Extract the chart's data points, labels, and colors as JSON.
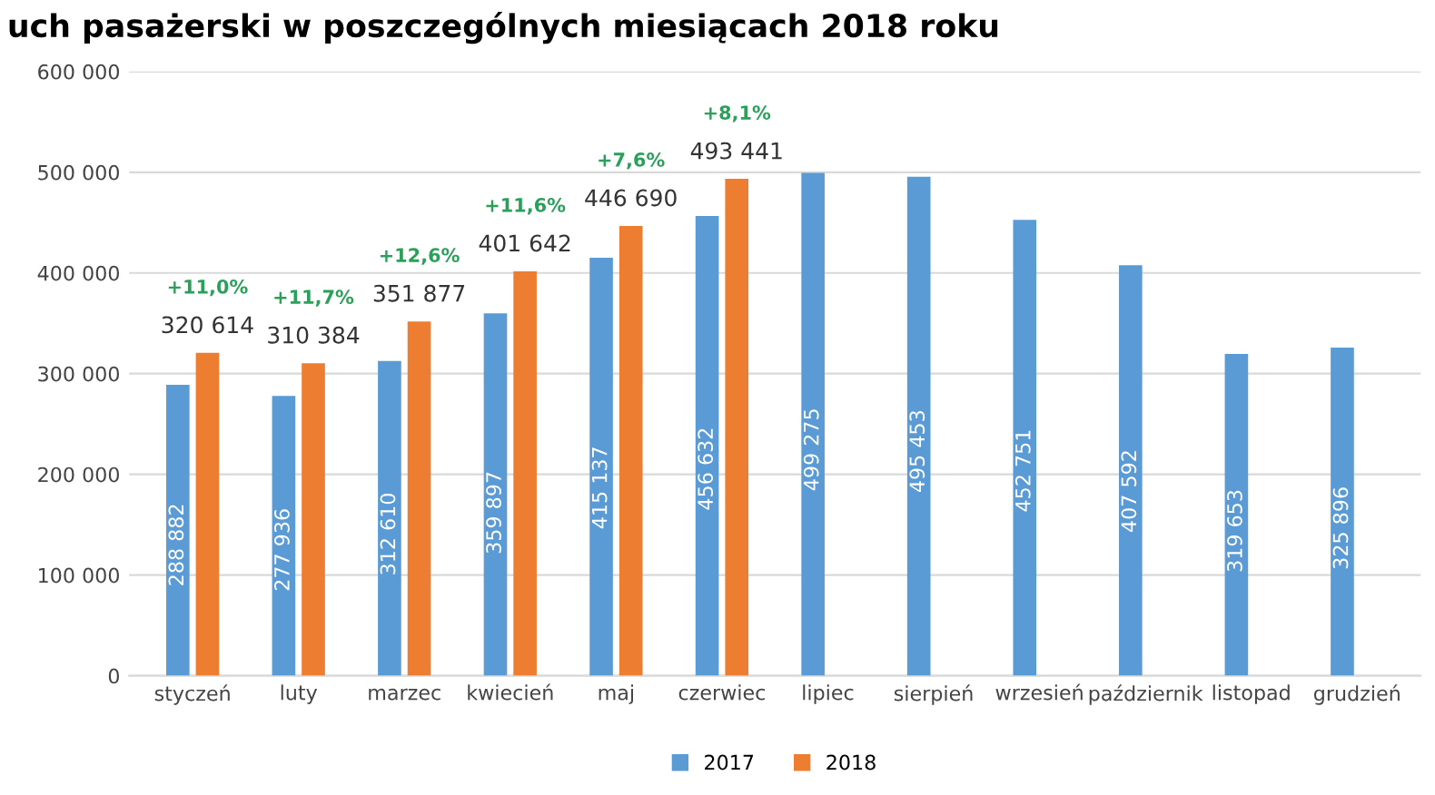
{
  "chart_data": {
    "type": "bar",
    "title": "uch pasażerski w poszczególnych miesiącach 2018 roku",
    "categories": [
      "styczeń",
      "luty",
      "marzec",
      "kwiecień",
      "maj",
      "czerwiec",
      "lipiec",
      "sierpień",
      "wrzesień",
      "październik",
      "listopad",
      "grudzień"
    ],
    "series": [
      {
        "name": "2017",
        "color": "#5b9bd5",
        "values": [
          288882,
          277936,
          312610,
          359897,
          415137,
          456632,
          499275,
          495453,
          452751,
          407592,
          319653,
          325896
        ],
        "value_labels": [
          "288 882",
          "277 936",
          "312 610",
          "359 897",
          "415 137",
          "456 632",
          "499 275",
          "495 453",
          "452 751",
          "407 592",
          "319 653",
          "325 896"
        ]
      },
      {
        "name": "2018",
        "color": "#ed7d31",
        "values": [
          320614,
          310384,
          351877,
          401642,
          446690,
          493441,
          null,
          null,
          null,
          null,
          null,
          null
        ],
        "value_labels": [
          "320 614",
          "310 384",
          "351 877",
          "401 642",
          "446 690",
          "493 441",
          null,
          null,
          null,
          null,
          null,
          null
        ]
      }
    ],
    "annotations": [
      "+11,0%",
      "+11,7%",
      "+12,6%",
      "+11,6%",
      "+7,6%",
      "+8,1%"
    ],
    "ylim": [
      0,
      600000
    ],
    "yticks": [
      0,
      {
        "value": 100000,
        "label": "100 000"
      },
      {
        "value": 200000,
        "label": "200 000"
      },
      {
        "value": 300000,
        "label": "300 000"
      },
      {
        "value": 400000,
        "label": "400 000"
      },
      {
        "value": 500000,
        "label": "500 000"
      },
      {
        "value": 600000,
        "label": "600 000"
      }
    ],
    "grid": "y",
    "legend": "bottom"
  }
}
